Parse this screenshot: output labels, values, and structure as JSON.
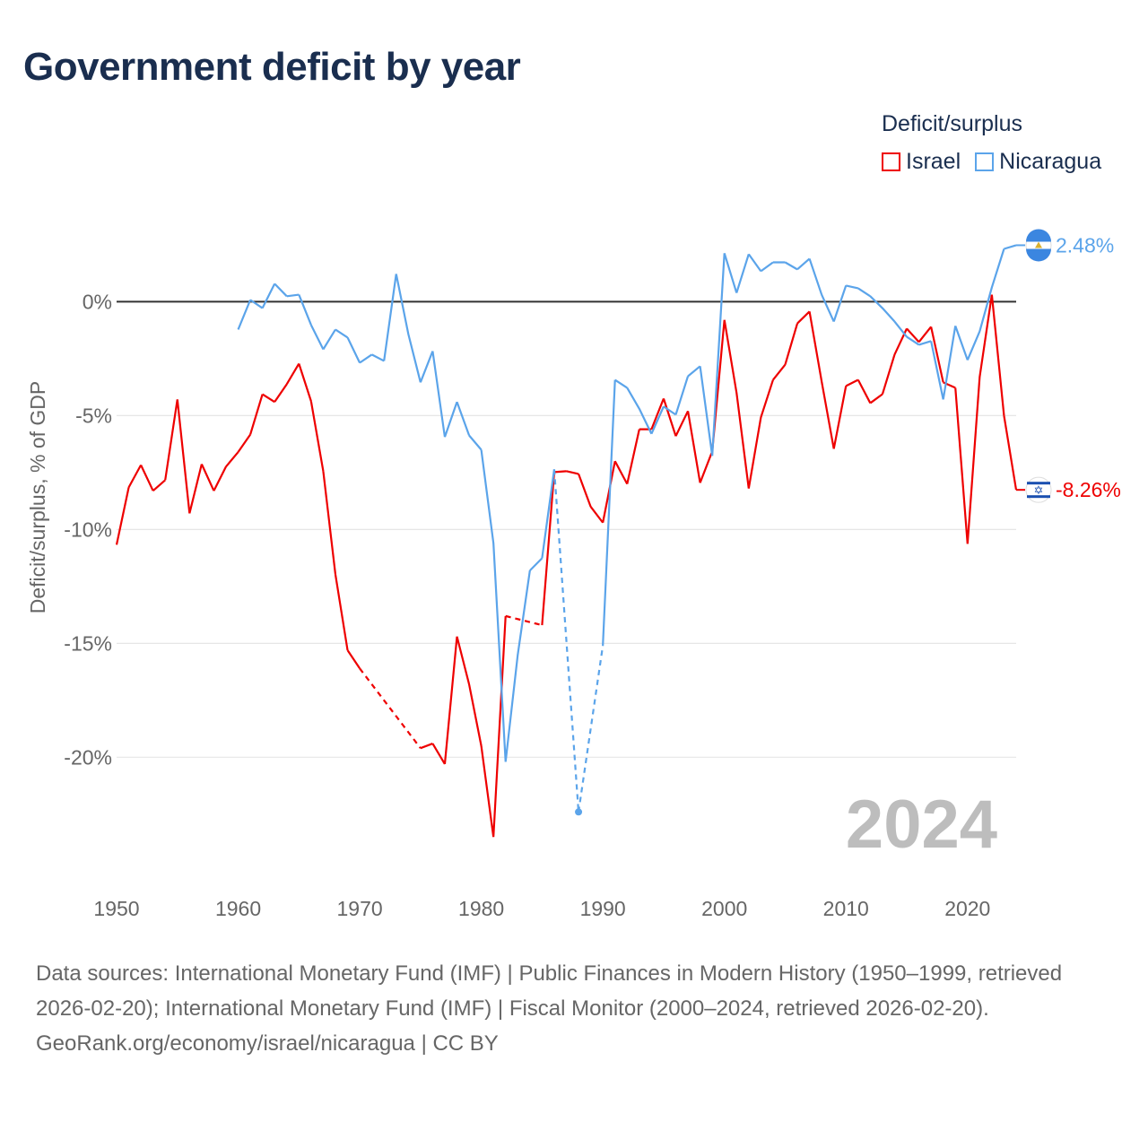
{
  "title": "Government deficit by year",
  "legend": {
    "title": "Deficit/surplus",
    "items": [
      {
        "name": "Israel",
        "color": "#ee0000"
      },
      {
        "name": "Nicaragua",
        "color": "#5ba4ea"
      }
    ]
  },
  "year_watermark": "2024",
  "chart_data": {
    "type": "line",
    "title": "Government deficit by year",
    "xlabel": "",
    "ylabel": "Deficit/surplus, % of GDP",
    "xlim": [
      1950,
      2024
    ],
    "ylim": [
      -25.5,
      3.6
    ],
    "xticks": [
      1950,
      1960,
      1970,
      1980,
      1990,
      2000,
      2010,
      2020
    ],
    "yticks": [
      {
        "v": 0,
        "label": "0%"
      },
      {
        "v": -5,
        "label": "-5%"
      },
      {
        "v": -10,
        "label": "-10%"
      },
      {
        "v": -15,
        "label": "-15%"
      },
      {
        "v": -20,
        "label": "-20%"
      }
    ],
    "legend_position": "top-right",
    "series": [
      {
        "name": "Israel",
        "color": "#ee0000",
        "end_label": "-8.26%",
        "start": 1950,
        "values": [
          -10.67,
          -8.15,
          -7.17,
          -8.3,
          -7.83,
          -4.29,
          -9.29,
          -7.13,
          -8.3,
          -7.24,
          -6.6,
          -5.83,
          -4.06,
          -4.4,
          -3.62,
          -2.72,
          -4.37,
          -7.44,
          -11.97,
          -15.3,
          -16.1,
          null,
          null,
          null,
          null,
          -19.6,
          -19.4,
          -20.3,
          -14.7,
          -16.8,
          -19.5,
          -23.5,
          -13.8,
          null,
          null,
          -14.2,
          -7.48,
          -7.44,
          -7.56,
          -9.0,
          -9.7,
          -7.0,
          -8.0,
          -5.6,
          -5.6,
          -4.25,
          -5.9,
          -4.8,
          -7.95,
          -6.57,
          -0.8,
          -4.0,
          -8.2,
          -5.08,
          -3.43,
          -2.76,
          -0.95,
          -0.43,
          -3.5,
          -6.46,
          -3.7,
          -3.43,
          -4.45,
          -4.06,
          -2.32,
          -1.18,
          -1.77,
          -1.1,
          -3.54,
          -3.78,
          -10.63,
          -3.3,
          0.31,
          -5.0,
          -8.26
        ]
      },
      {
        "name": "Nicaragua",
        "color": "#5ba4ea",
        "end_label": "2.48%",
        "start": 1960,
        "values": [
          -1.22,
          0.08,
          -0.28,
          0.79,
          0.24,
          0.31,
          -1.02,
          -2.09,
          -1.22,
          -1.57,
          -2.68,
          -2.32,
          -2.6,
          1.22,
          -1.42,
          -3.54,
          -2.17,
          -5.94,
          -4.4,
          -5.87,
          -6.5,
          -10.6,
          -20.2,
          -15.5,
          -11.8,
          -11.26,
          -7.36,
          null,
          -22.4,
          null,
          -15.1,
          -3.43,
          -3.78,
          -4.7,
          -5.8,
          -4.6,
          -4.96,
          -3.27,
          -2.83,
          -6.77,
          2.13,
          0.39,
          2.09,
          1.34,
          1.73,
          1.73,
          1.42,
          1.89,
          0.31,
          -0.87,
          0.71,
          0.59,
          0.24,
          -0.28,
          -0.87,
          -1.54,
          -1.89,
          -1.73,
          -4.29,
          -1.06,
          -2.56,
          -1.3,
          0.63,
          2.32,
          2.48
        ]
      }
    ]
  },
  "sources": {
    "text": "Data sources: International Monetary Fund (IMF) | Public Finances in Modern History (1950–1999, retrieved 2026-02-20); International Monetary Fund (IMF) | Fiscal Monitor (2000–2024, retrieved 2026-02-20).",
    "credit": "GeoRank.org/economy/israel/nicaragua | CC BY"
  }
}
